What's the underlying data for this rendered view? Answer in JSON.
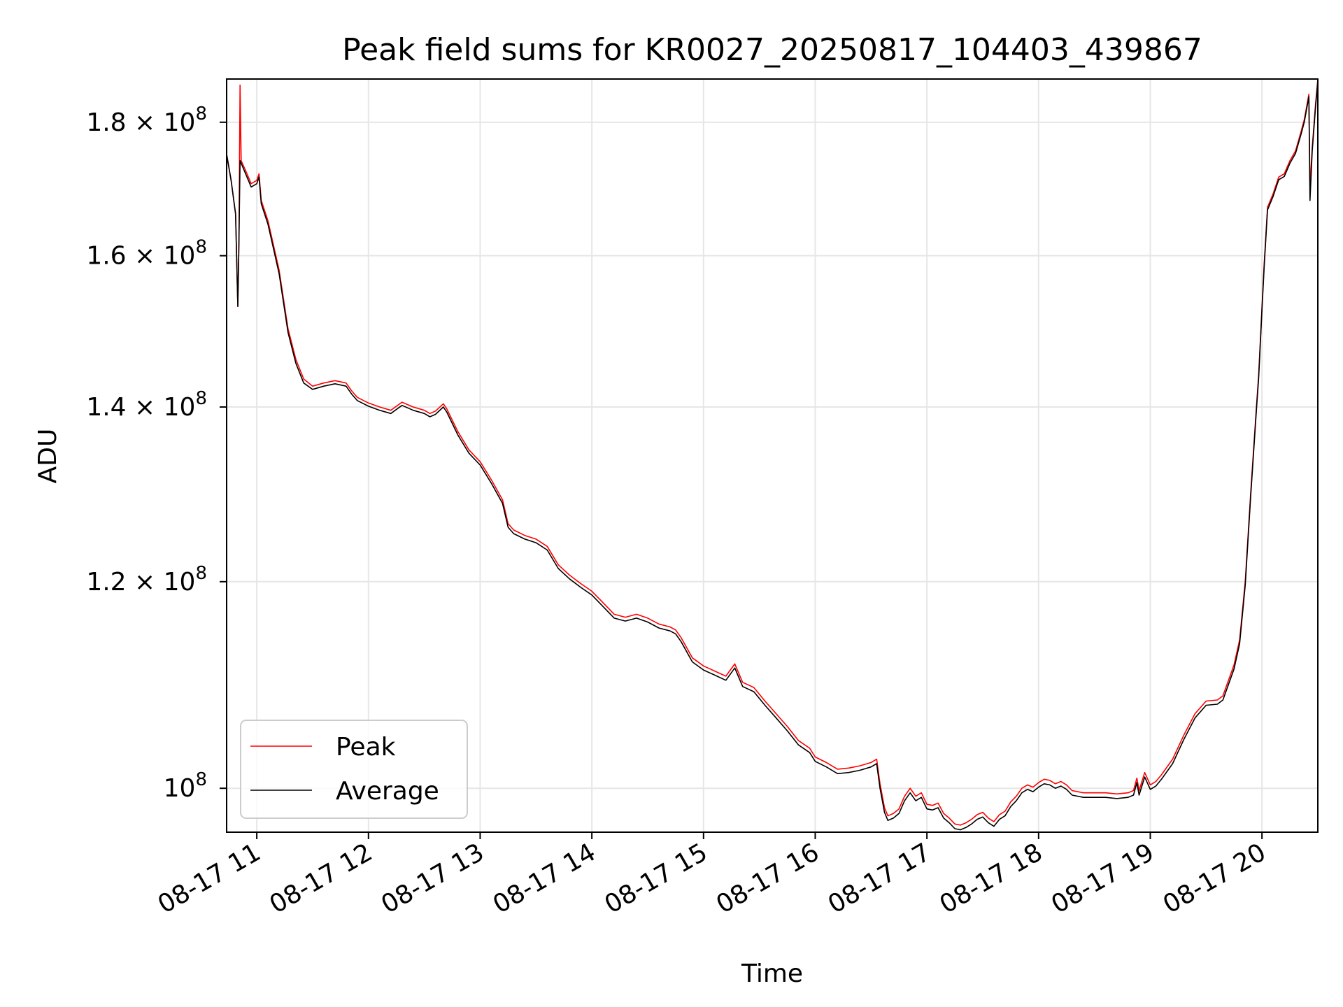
{
  "chart_data": {
    "type": "line",
    "title": "Peak field sums for KR0027_20250817_104403_439867",
    "xlabel": "Time",
    "ylabel": "ADU",
    "y_scale": "log",
    "grid": true,
    "legend_position": "lower-left",
    "x_ticks": [
      "08-17 11",
      "08-17 12",
      "08-17 13",
      "08-17 14",
      "08-17 15",
      "08-17 16",
      "08-17 17",
      "08-17 18",
      "08-17 19",
      "08-17 20"
    ],
    "y_ticks": [
      {
        "base": "10",
        "exp": "8",
        "value": 100000000
      },
      {
        "mant": "1.2",
        "base": "10",
        "exp": "8",
        "value": 120000000
      },
      {
        "mant": "1.4",
        "base": "10",
        "exp": "8",
        "value": 140000000
      },
      {
        "mant": "1.6",
        "base": "10",
        "exp": "8",
        "value": 160000000
      },
      {
        "mant": "1.8",
        "base": "10",
        "exp": "8",
        "value": 180000000
      }
    ],
    "x_range_hours": [
      10.73,
      20.5
    ],
    "ylim": [
      96200000,
      187000000
    ],
    "x_unit": "hour of 2025-08-17",
    "series": [
      {
        "name": "Peak",
        "color": "#ff0000",
        "points": [
          [
            10.73,
            175.0
          ],
          [
            10.77,
            171.0
          ],
          [
            10.81,
            166.0
          ],
          [
            10.83,
            153.0
          ],
          [
            10.84,
            162.0
          ],
          [
            10.85,
            186.0
          ],
          [
            10.86,
            174.0
          ],
          [
            10.9,
            172.5
          ],
          [
            10.95,
            170.5
          ],
          [
            11.0,
            171.0
          ],
          [
            11.02,
            172.0
          ],
          [
            11.04,
            168.0
          ],
          [
            11.1,
            165.0
          ],
          [
            11.2,
            158.0
          ],
          [
            11.28,
            150.0
          ],
          [
            11.35,
            146.0
          ],
          [
            11.42,
            143.5
          ],
          [
            11.5,
            142.6
          ],
          [
            11.6,
            143.0
          ],
          [
            11.7,
            143.3
          ],
          [
            11.8,
            143.0
          ],
          [
            11.85,
            142.0
          ],
          [
            11.9,
            141.2
          ],
          [
            12.0,
            140.5
          ],
          [
            12.1,
            140.0
          ],
          [
            12.2,
            139.6
          ],
          [
            12.3,
            140.6
          ],
          [
            12.4,
            140.0
          ],
          [
            12.5,
            139.6
          ],
          [
            12.55,
            139.2
          ],
          [
            12.6,
            139.5
          ],
          [
            12.67,
            140.4
          ],
          [
            12.7,
            139.8
          ],
          [
            12.8,
            137.0
          ],
          [
            12.9,
            134.8
          ],
          [
            13.0,
            133.4
          ],
          [
            13.1,
            131.3
          ],
          [
            13.2,
            129.0
          ],
          [
            13.25,
            126.3
          ],
          [
            13.3,
            125.6
          ],
          [
            13.4,
            125.0
          ],
          [
            13.5,
            124.6
          ],
          [
            13.6,
            123.8
          ],
          [
            13.7,
            121.8
          ],
          [
            13.8,
            120.7
          ],
          [
            13.9,
            119.8
          ],
          [
            14.0,
            119.0
          ],
          [
            14.1,
            117.8
          ],
          [
            14.2,
            116.6
          ],
          [
            14.3,
            116.3
          ],
          [
            14.4,
            116.6
          ],
          [
            14.5,
            116.2
          ],
          [
            14.6,
            115.6
          ],
          [
            14.7,
            115.3
          ],
          [
            14.75,
            115.0
          ],
          [
            14.8,
            114.2
          ],
          [
            14.9,
            112.2
          ],
          [
            15.0,
            111.4
          ],
          [
            15.1,
            110.9
          ],
          [
            15.2,
            110.4
          ],
          [
            15.28,
            111.6
          ],
          [
            15.35,
            109.8
          ],
          [
            15.45,
            109.3
          ],
          [
            15.55,
            108.0
          ],
          [
            15.65,
            106.8
          ],
          [
            15.75,
            105.6
          ],
          [
            15.85,
            104.3
          ],
          [
            15.95,
            103.6
          ],
          [
            16.0,
            102.8
          ],
          [
            16.1,
            102.3
          ],
          [
            16.2,
            101.7
          ],
          [
            16.3,
            101.8
          ],
          [
            16.4,
            102.0
          ],
          [
            16.5,
            102.3
          ],
          [
            16.55,
            102.6
          ],
          [
            16.58,
            100.4
          ],
          [
            16.62,
            98.3
          ],
          [
            16.65,
            97.6
          ],
          [
            16.7,
            97.8
          ],
          [
            16.75,
            98.2
          ],
          [
            16.8,
            99.3
          ],
          [
            16.85,
            100.0
          ],
          [
            16.9,
            99.3
          ],
          [
            16.95,
            99.6
          ],
          [
            17.0,
            98.6
          ],
          [
            17.05,
            98.5
          ],
          [
            17.1,
            98.7
          ],
          [
            17.15,
            97.8
          ],
          [
            17.2,
            97.4
          ],
          [
            17.25,
            96.9
          ],
          [
            17.3,
            96.8
          ],
          [
            17.35,
            97.0
          ],
          [
            17.4,
            97.3
          ],
          [
            17.45,
            97.7
          ],
          [
            17.5,
            97.9
          ],
          [
            17.55,
            97.4
          ],
          [
            17.6,
            97.1
          ],
          [
            17.65,
            97.7
          ],
          [
            17.7,
            98.0
          ],
          [
            17.75,
            98.8
          ],
          [
            17.8,
            99.3
          ],
          [
            17.85,
            100.0
          ],
          [
            17.9,
            100.3
          ],
          [
            17.95,
            100.1
          ],
          [
            18.0,
            100.5
          ],
          [
            18.05,
            100.8
          ],
          [
            18.1,
            100.7
          ],
          [
            18.15,
            100.4
          ],
          [
            18.2,
            100.6
          ],
          [
            18.25,
            100.3
          ],
          [
            18.3,
            99.8
          ],
          [
            18.4,
            99.6
          ],
          [
            18.5,
            99.6
          ],
          [
            18.6,
            99.6
          ],
          [
            18.7,
            99.5
          ],
          [
            18.8,
            99.6
          ],
          [
            18.85,
            99.8
          ],
          [
            18.88,
            100.9
          ],
          [
            18.9,
            99.8
          ],
          [
            18.95,
            101.4
          ],
          [
            19.0,
            100.3
          ],
          [
            19.05,
            100.6
          ],
          [
            19.1,
            101.2
          ],
          [
            19.2,
            102.6
          ],
          [
            19.3,
            104.8
          ],
          [
            19.4,
            106.8
          ],
          [
            19.5,
            108.0
          ],
          [
            19.6,
            108.1
          ],
          [
            19.65,
            108.5
          ],
          [
            19.7,
            110.0
          ],
          [
            19.75,
            111.5
          ],
          [
            19.8,
            114.0
          ],
          [
            19.85,
            120.0
          ],
          [
            19.9,
            130.0
          ],
          [
            19.95,
            140.0
          ],
          [
            19.97,
            144.0
          ],
          [
            20.0,
            153.0
          ],
          [
            20.02,
            159.0
          ],
          [
            20.05,
            167.0
          ],
          [
            20.1,
            169.0
          ],
          [
            20.15,
            171.5
          ],
          [
            20.2,
            172.0
          ],
          [
            20.25,
            174.0
          ],
          [
            20.3,
            175.5
          ],
          [
            20.35,
            178.5
          ],
          [
            20.38,
            180.5
          ],
          [
            20.4,
            182.5
          ],
          [
            20.42,
            184.5
          ],
          [
            20.43,
            170.0
          ],
          [
            20.45,
            176.0
          ],
          [
            20.48,
            183.0
          ],
          [
            20.5,
            187.0
          ]
        ]
      },
      {
        "name": "Average",
        "color": "#000000",
        "points": [
          [
            10.73,
            175.0
          ],
          [
            10.77,
            171.0
          ],
          [
            10.81,
            166.0
          ],
          [
            10.83,
            153.0
          ],
          [
            10.84,
            162.0
          ],
          [
            10.85,
            174.0
          ],
          [
            10.9,
            172.0
          ],
          [
            10.95,
            170.0
          ],
          [
            11.0,
            170.5
          ],
          [
            11.02,
            171.5
          ],
          [
            11.04,
            167.5
          ],
          [
            11.1,
            164.5
          ],
          [
            11.2,
            157.5
          ],
          [
            11.28,
            149.5
          ],
          [
            11.35,
            145.5
          ],
          [
            11.42,
            143.0
          ],
          [
            11.5,
            142.2
          ],
          [
            11.6,
            142.6
          ],
          [
            11.7,
            142.9
          ],
          [
            11.8,
            142.6
          ],
          [
            11.85,
            141.6
          ],
          [
            11.9,
            140.8
          ],
          [
            12.0,
            140.1
          ],
          [
            12.1,
            139.6
          ],
          [
            12.2,
            139.2
          ],
          [
            12.3,
            140.2
          ],
          [
            12.4,
            139.6
          ],
          [
            12.5,
            139.2
          ],
          [
            12.55,
            138.8
          ],
          [
            12.6,
            139.1
          ],
          [
            12.67,
            140.0
          ],
          [
            12.7,
            139.4
          ],
          [
            12.8,
            136.6
          ],
          [
            12.9,
            134.4
          ],
          [
            13.0,
            133.0
          ],
          [
            13.1,
            130.9
          ],
          [
            13.2,
            128.6
          ],
          [
            13.25,
            125.9
          ],
          [
            13.3,
            125.2
          ],
          [
            13.4,
            124.6
          ],
          [
            13.5,
            124.2
          ],
          [
            13.6,
            123.4
          ],
          [
            13.7,
            121.4
          ],
          [
            13.8,
            120.3
          ],
          [
            13.9,
            119.4
          ],
          [
            14.0,
            118.6
          ],
          [
            14.1,
            117.4
          ],
          [
            14.2,
            116.2
          ],
          [
            14.3,
            115.9
          ],
          [
            14.4,
            116.2
          ],
          [
            14.5,
            115.8
          ],
          [
            14.6,
            115.2
          ],
          [
            14.7,
            114.9
          ],
          [
            14.75,
            114.6
          ],
          [
            14.8,
            113.8
          ],
          [
            14.9,
            111.8
          ],
          [
            15.0,
            111.0
          ],
          [
            15.1,
            110.5
          ],
          [
            15.2,
            110.0
          ],
          [
            15.28,
            111.2
          ],
          [
            15.35,
            109.4
          ],
          [
            15.45,
            108.9
          ],
          [
            15.55,
            107.6
          ],
          [
            15.65,
            106.4
          ],
          [
            15.75,
            105.2
          ],
          [
            15.85,
            103.9
          ],
          [
            15.95,
            103.2
          ],
          [
            16.0,
            102.4
          ],
          [
            16.1,
            101.9
          ],
          [
            16.2,
            101.3
          ],
          [
            16.3,
            101.4
          ],
          [
            16.4,
            101.6
          ],
          [
            16.5,
            101.9
          ],
          [
            16.55,
            102.2
          ],
          [
            16.58,
            100.0
          ],
          [
            16.62,
            97.9
          ],
          [
            16.65,
            97.2
          ],
          [
            16.7,
            97.4
          ],
          [
            16.75,
            97.8
          ],
          [
            16.8,
            98.9
          ],
          [
            16.85,
            99.6
          ],
          [
            16.9,
            98.9
          ],
          [
            16.95,
            99.2
          ],
          [
            17.0,
            98.2
          ],
          [
            17.05,
            98.1
          ],
          [
            17.1,
            98.3
          ],
          [
            17.15,
            97.4
          ],
          [
            17.2,
            97.0
          ],
          [
            17.25,
            96.5
          ],
          [
            17.3,
            96.4
          ],
          [
            17.35,
            96.6
          ],
          [
            17.4,
            96.9
          ],
          [
            17.45,
            97.3
          ],
          [
            17.5,
            97.5
          ],
          [
            17.55,
            97.0
          ],
          [
            17.6,
            96.7
          ],
          [
            17.65,
            97.3
          ],
          [
            17.7,
            97.6
          ],
          [
            17.75,
            98.4
          ],
          [
            17.8,
            98.9
          ],
          [
            17.85,
            99.6
          ],
          [
            17.9,
            99.9
          ],
          [
            17.95,
            99.7
          ],
          [
            18.0,
            100.1
          ],
          [
            18.05,
            100.4
          ],
          [
            18.1,
            100.3
          ],
          [
            18.15,
            100.0
          ],
          [
            18.2,
            100.2
          ],
          [
            18.25,
            99.9
          ],
          [
            18.3,
            99.4
          ],
          [
            18.4,
            99.2
          ],
          [
            18.5,
            99.2
          ],
          [
            18.6,
            99.2
          ],
          [
            18.7,
            99.1
          ],
          [
            18.8,
            99.2
          ],
          [
            18.85,
            99.4
          ],
          [
            18.88,
            100.5
          ],
          [
            18.9,
            99.4
          ],
          [
            18.95,
            101.0
          ],
          [
            19.0,
            99.9
          ],
          [
            19.05,
            100.2
          ],
          [
            19.1,
            100.8
          ],
          [
            19.2,
            102.2
          ],
          [
            19.3,
            104.4
          ],
          [
            19.4,
            106.4
          ],
          [
            19.5,
            107.6
          ],
          [
            19.6,
            107.7
          ],
          [
            19.65,
            108.1
          ],
          [
            19.7,
            109.6
          ],
          [
            19.75,
            111.1
          ],
          [
            19.8,
            113.6
          ],
          [
            19.85,
            119.6
          ],
          [
            19.9,
            129.6
          ],
          [
            19.95,
            139.6
          ],
          [
            19.97,
            143.6
          ],
          [
            20.0,
            152.6
          ],
          [
            20.02,
            158.6
          ],
          [
            20.05,
            166.6
          ],
          [
            20.1,
            168.6
          ],
          [
            20.15,
            171.1
          ],
          [
            20.2,
            171.6
          ],
          [
            20.25,
            173.6
          ],
          [
            20.3,
            175.1
          ],
          [
            20.35,
            178.1
          ],
          [
            20.38,
            180.1
          ],
          [
            20.4,
            182.1
          ],
          [
            20.42,
            184.1
          ],
          [
            20.43,
            168.0
          ],
          [
            20.45,
            175.5
          ],
          [
            20.48,
            182.5
          ],
          [
            20.5,
            186.5
          ]
        ]
      }
    ]
  }
}
